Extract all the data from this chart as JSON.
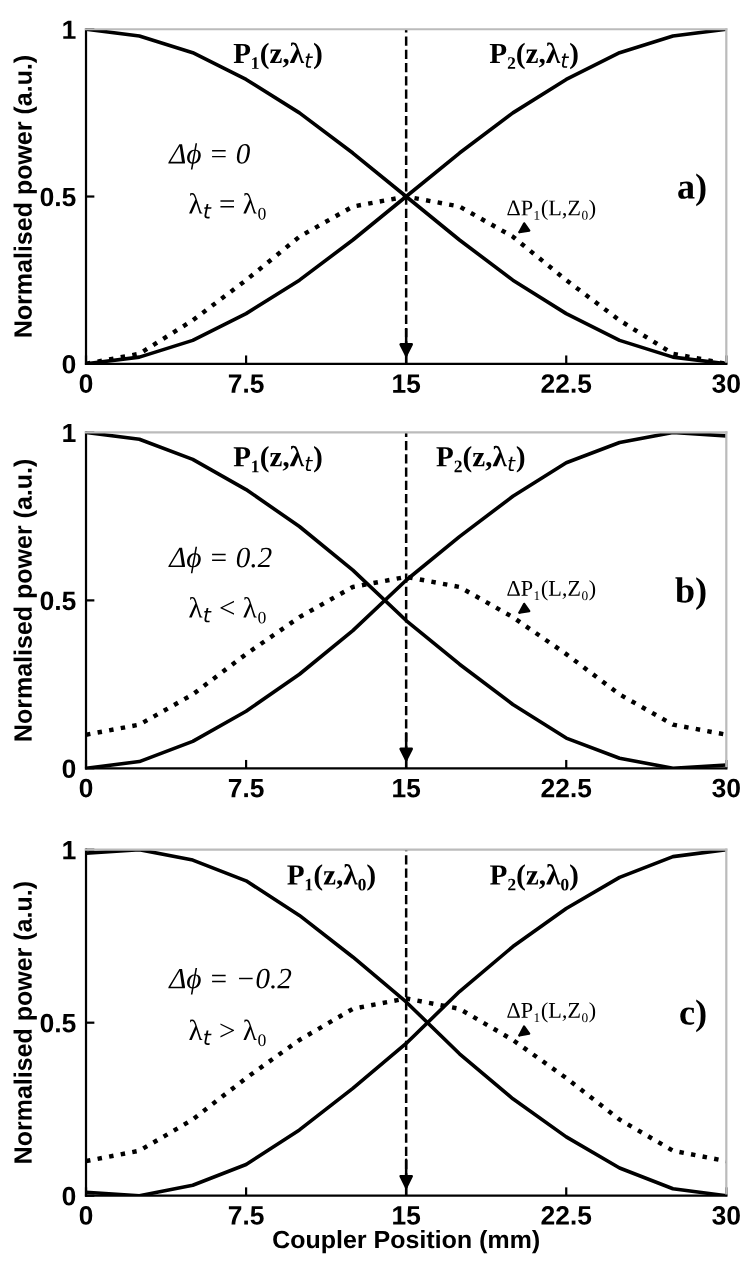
{
  "chart_data": [
    {
      "type": "line",
      "ylabel": "Normalised power (a.u.)",
      "x": [
        0,
        2.5,
        5,
        7.5,
        10,
        12.5,
        15,
        17.5,
        20,
        22.5,
        25,
        27.5,
        30
      ],
      "series": [
        {
          "name": "P₁(z,λ$_{t}$)",
          "color": "#000000",
          "line_style": "solid",
          "values": [
            1,
            0.98,
            0.93,
            0.85,
            0.75,
            0.63,
            0.5,
            0.37,
            0.25,
            0.15,
            0.07,
            0.02,
            0
          ]
        },
        {
          "name": "P₂(z,λ$_{t}$)",
          "color": "#000000",
          "line_style": "solid",
          "values": [
            0,
            0.02,
            0.07,
            0.15,
            0.25,
            0.37,
            0.5,
            0.63,
            0.75,
            0.85,
            0.93,
            0.98,
            1
          ]
        },
        {
          "name": "ΔP₁(L,Z₀)",
          "color": "#000000",
          "line_style": "dotted",
          "values": [
            0,
            0.03,
            0.13,
            0.25,
            0.38,
            0.47,
            0.5,
            0.47,
            0.38,
            0.25,
            0.13,
            0.03,
            0
          ]
        }
      ],
      "annotations": [
        "Δϕ = 0",
        "λ$_{t}$ = λ₀",
        "a)"
      ],
      "ref_lines": [
        {
          "axis": "x",
          "value": 15,
          "line_style": "dashed",
          "color": "#000000"
        }
      ],
      "xlim": [
        0,
        30
      ],
      "ylim": [
        0,
        1
      ],
      "xticks": [
        0,
        7.5,
        15,
        22.5,
        30
      ],
      "yticks": [
        0,
        0.5,
        1
      ],
      "grid": false,
      "legend": false
    },
    {
      "type": "line",
      "ylabel": "Normalised power (a.u.)",
      "x": [
        0,
        2.5,
        5,
        7.5,
        10,
        12.5,
        15,
        17.5,
        20,
        22.5,
        25,
        27.5,
        30
      ],
      "series": [
        {
          "name": "P₁(z,λ$_{t}$)",
          "color": "#000000",
          "line_style": "solid",
          "values": [
            1,
            0.98,
            0.92,
            0.83,
            0.72,
            0.59,
            0.44,
            0.31,
            0.19,
            0.09,
            0.03,
            0.0,
            0.01
          ]
        },
        {
          "name": "P₂(z,λ$_{t}$)",
          "color": "#000000",
          "line_style": "solid",
          "values": [
            0,
            0.02,
            0.08,
            0.17,
            0.28,
            0.41,
            0.56,
            0.69,
            0.81,
            0.91,
            0.97,
            1.0,
            0.99
          ]
        },
        {
          "name": "ΔP₁(L,Z₀)",
          "color": "#000000",
          "line_style": "dotted",
          "values": [
            0.1,
            0.13,
            0.22,
            0.34,
            0.45,
            0.54,
            0.57,
            0.54,
            0.45,
            0.34,
            0.22,
            0.13,
            0.1
          ]
        }
      ],
      "annotations": [
        "Δϕ = 0.2",
        "λ$_{t}$ < λ₀",
        "b)"
      ],
      "ref_lines": [
        {
          "axis": "x",
          "value": 15,
          "line_style": "dashed",
          "color": "#000000"
        }
      ],
      "xlim": [
        0,
        30
      ],
      "ylim": [
        0,
        1
      ],
      "xticks": [
        0,
        7.5,
        15,
        22.5,
        30
      ],
      "yticks": [
        0,
        0.5,
        1
      ],
      "grid": false,
      "legend": false
    },
    {
      "type": "line",
      "xlabel": "Coupler Position (mm)",
      "ylabel": "Normalised power (a.u.)",
      "x": [
        0,
        2.5,
        5,
        7.5,
        10,
        12.5,
        15,
        17.5,
        20,
        22.5,
        25,
        27.5,
        30
      ],
      "series": [
        {
          "name": "P₁(z,λ₀)",
          "color": "#000000",
          "line_style": "solid",
          "values": [
            0.99,
            1.0,
            0.97,
            0.91,
            0.81,
            0.69,
            0.56,
            0.41,
            0.28,
            0.17,
            0.08,
            0.02,
            0
          ]
        },
        {
          "name": "P₂(z,λ₀)",
          "color": "#000000",
          "line_style": "solid",
          "values": [
            0.01,
            0.0,
            0.03,
            0.09,
            0.19,
            0.31,
            0.44,
            0.59,
            0.72,
            0.83,
            0.92,
            0.98,
            1
          ]
        },
        {
          "name": "ΔP₁(L,Z₀)",
          "color": "#000000",
          "line_style": "dotted",
          "values": [
            0.1,
            0.13,
            0.22,
            0.34,
            0.45,
            0.54,
            0.57,
            0.54,
            0.45,
            0.34,
            0.22,
            0.13,
            0.1
          ]
        }
      ],
      "annotations": [
        "Δϕ = −0.2",
        "λ$_{t}$ > λ₀",
        "c)"
      ],
      "ref_lines": [
        {
          "axis": "x",
          "value": 15,
          "line_style": "dashed",
          "color": "#000000"
        }
      ],
      "xlim": [
        0,
        30
      ],
      "ylim": [
        0,
        1
      ],
      "xticks": [
        0,
        7.5,
        15,
        22.5,
        30
      ],
      "yticks": [
        0,
        0.5,
        1
      ],
      "grid": false,
      "legend": false
    }
  ]
}
